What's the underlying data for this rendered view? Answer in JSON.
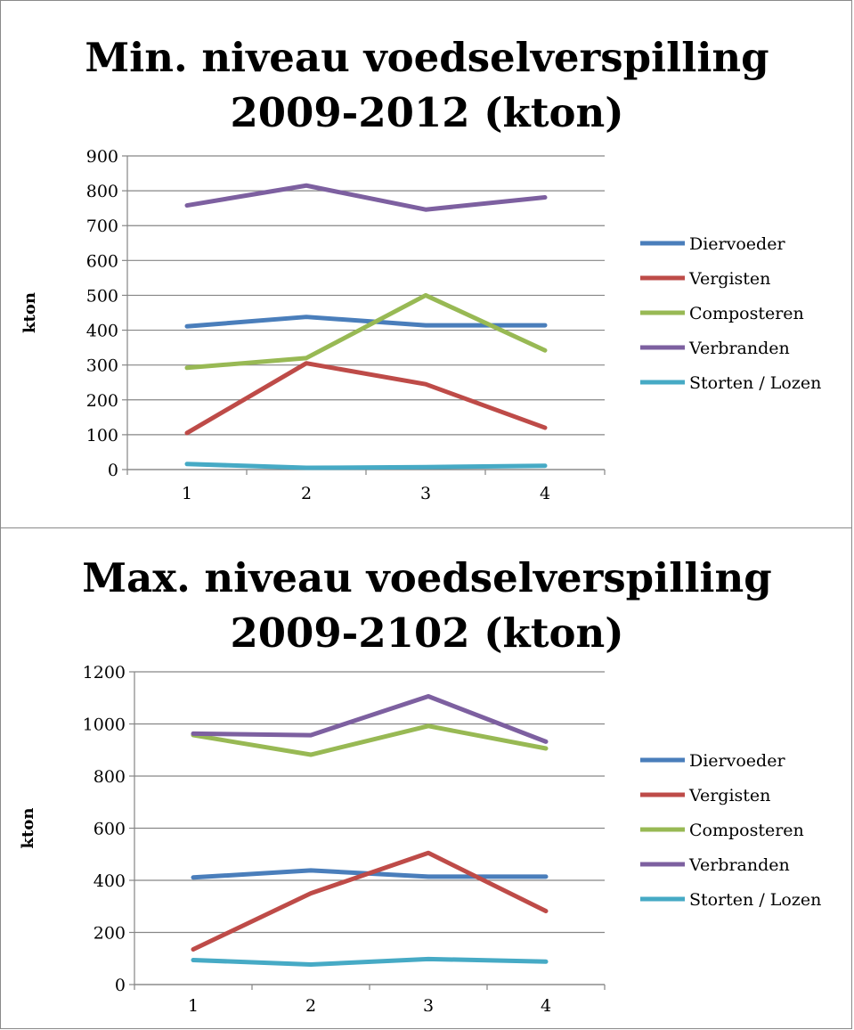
{
  "chart_data": [
    {
      "type": "line",
      "title_line1": "Min. niveau voedselverspilling",
      "title_line2": "2009-2012 (kton)",
      "ylabel": "kton",
      "xlabel": "",
      "categories": [
        "1",
        "2",
        "3",
        "4"
      ],
      "ylim": [
        0,
        900
      ],
      "yticks": [
        "0",
        "100",
        "200",
        "300",
        "400",
        "500",
        "600",
        "700",
        "800",
        "900"
      ],
      "grid": true,
      "legend_position": "right",
      "series": [
        {
          "name": "Diervoeder",
          "color": "#4a7ebb",
          "values": [
            411,
            438,
            414,
            414
          ]
        },
        {
          "name": "Vergisten",
          "color": "#be4b48",
          "values": [
            105,
            305,
            245,
            120
          ]
        },
        {
          "name": "Composteren",
          "color": "#98b954",
          "values": [
            292,
            320,
            500,
            342
          ]
        },
        {
          "name": "Verbranden",
          "color": "#7d60a0",
          "values": [
            758,
            815,
            746,
            781
          ]
        },
        {
          "name": "Storten / Lozen",
          "color": "#46aac5",
          "values": [
            16,
            5,
            7,
            11
          ]
        }
      ]
    },
    {
      "type": "line",
      "title_line1": "Max. niveau voedselverspilling",
      "title_line2": "2009-2102 (kton)",
      "ylabel": "kton",
      "xlabel": "",
      "categories": [
        "1",
        "2",
        "3",
        "4"
      ],
      "ylim": [
        0,
        1200
      ],
      "yticks": [
        "0",
        "200",
        "400",
        "600",
        "800",
        "1000",
        "1200"
      ],
      "grid": true,
      "legend_position": "right",
      "series": [
        {
          "name": "Diervoeder",
          "color": "#4a7ebb",
          "values": [
            411,
            438,
            414,
            414
          ]
        },
        {
          "name": "Vergisten",
          "color": "#be4b48",
          "values": [
            135,
            350,
            505,
            282
          ]
        },
        {
          "name": "Composteren",
          "color": "#98b954",
          "values": [
            957,
            882,
            992,
            906
          ]
        },
        {
          "name": "Verbranden",
          "color": "#7d60a0",
          "values": [
            963,
            957,
            1106,
            932
          ]
        },
        {
          "name": "Storten / Lozen",
          "color": "#46aac5",
          "values": [
            94,
            77,
            98,
            88
          ]
        }
      ]
    }
  ]
}
